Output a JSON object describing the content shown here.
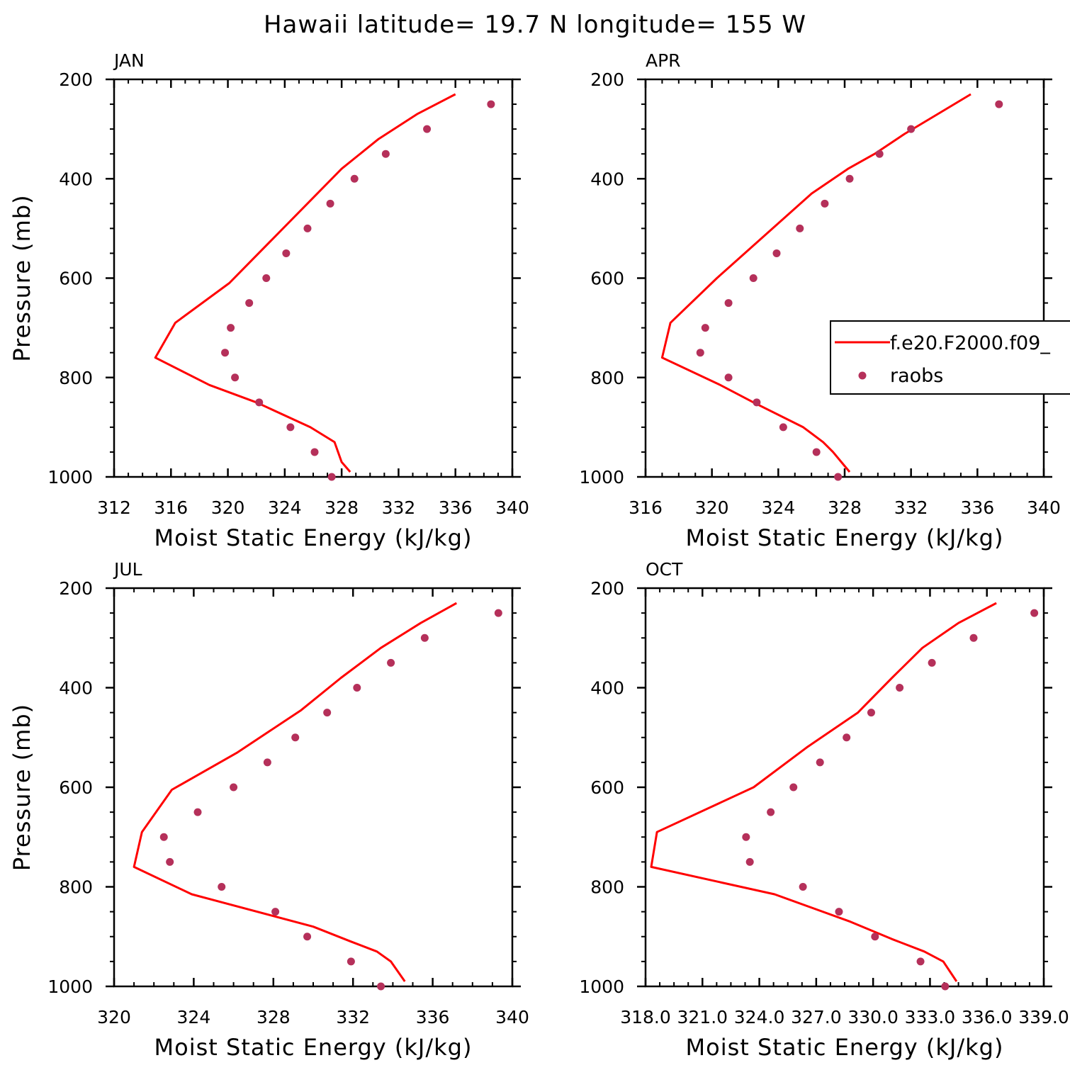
{
  "figure": {
    "title": "Hawaii  latitude= 19.7 N longitude= 155 W"
  },
  "colors": {
    "model_line": "#ff0000",
    "raobs_marker": "#b5305a",
    "axes": "#000000"
  },
  "legend": {
    "position": "right-of-APR-panel",
    "entries": [
      {
        "label": "f.e20.F2000.f09_",
        "style": "line"
      },
      {
        "label": "raobs",
        "style": "marker"
      }
    ]
  },
  "chart_data": [
    {
      "type": "line",
      "panel_label": "JAN",
      "xlabel": "Moist Static Energy (kJ/kg)",
      "ylabel": "Pressure (mb)",
      "xlim": [
        312,
        340
      ],
      "ylim": [
        1000,
        200
      ],
      "x_ticks": [
        312,
        316,
        320,
        324,
        328,
        332,
        336,
        340
      ],
      "x_tick_labels": [
        "312",
        "316",
        "320",
        "324",
        "328",
        "332",
        "336",
        "340"
      ],
      "y_ticks": [
        200,
        400,
        600,
        800,
        1000
      ],
      "y_tick_labels": [
        "200",
        "400",
        "600",
        "800",
        "1000"
      ],
      "series": [
        {
          "name": "f.e20.F2000.f09_",
          "style": "line",
          "x": [
            336.0,
            333.3,
            330.6,
            328.0,
            320.1,
            316.3,
            314.9,
            318.7,
            322.0,
            325.8,
            327.5,
            328.0,
            328.6
          ],
          "y": [
            230,
            270,
            320,
            380,
            610,
            690,
            760,
            815,
            850,
            900,
            930,
            970,
            990
          ]
        },
        {
          "name": "raobs",
          "style": "marker",
          "x": [
            338.5,
            334.0,
            331.1,
            328.9,
            327.2,
            325.6,
            324.1,
            322.7,
            321.5,
            320.2,
            319.8,
            320.5,
            322.2,
            324.4,
            326.1,
            327.3
          ],
          "y": [
            250,
            300,
            350,
            400,
            450,
            500,
            550,
            600,
            650,
            700,
            750,
            800,
            850,
            900,
            950,
            1000
          ]
        }
      ]
    },
    {
      "type": "line",
      "panel_label": "APR",
      "xlabel": "Moist Static Energy (kJ/kg)",
      "ylabel": "",
      "xlim": [
        316,
        340
      ],
      "ylim": [
        1000,
        200
      ],
      "x_ticks": [
        316,
        320,
        324,
        328,
        332,
        336,
        340
      ],
      "x_tick_labels": [
        "316",
        "320",
        "324",
        "328",
        "332",
        "336",
        "340"
      ],
      "y_ticks": [
        200,
        400,
        600,
        800,
        1000
      ],
      "y_tick_labels": [
        "200",
        "400",
        "600",
        "800",
        "1000"
      ],
      "series": [
        {
          "name": "f.e20.F2000.f09_",
          "style": "line",
          "x": [
            335.6,
            333.6,
            331.6,
            329.8,
            328.2,
            326.0,
            320.3,
            317.5,
            317.0,
            320.5,
            322.5,
            325.5,
            326.7,
            327.3,
            327.8,
            328.3
          ],
          "y": [
            230,
            270,
            310,
            350,
            380,
            430,
            600,
            690,
            760,
            815,
            850,
            900,
            930,
            950,
            970,
            990
          ]
        },
        {
          "name": "raobs",
          "style": "marker",
          "x": [
            337.3,
            332.0,
            330.1,
            328.3,
            326.8,
            325.3,
            323.9,
            322.5,
            321.0,
            319.6,
            319.3,
            321.0,
            322.7,
            324.3,
            326.3,
            327.6
          ],
          "y": [
            250,
            300,
            350,
            400,
            450,
            500,
            550,
            600,
            650,
            700,
            750,
            800,
            850,
            900,
            950,
            1000
          ]
        }
      ]
    },
    {
      "type": "line",
      "panel_label": "JUL",
      "xlabel": "Moist Static Energy (kJ/kg)",
      "ylabel": "Pressure (mb)",
      "xlim": [
        320,
        340
      ],
      "ylim": [
        1000,
        200
      ],
      "x_ticks": [
        320,
        324,
        328,
        332,
        336,
        340
      ],
      "x_tick_labels": [
        "320",
        "324",
        "328",
        "332",
        "336",
        "340"
      ],
      "y_ticks": [
        200,
        400,
        600,
        800,
        1000
      ],
      "y_tick_labels": [
        "200",
        "400",
        "600",
        "800",
        "1000"
      ],
      "series": [
        {
          "name": "f.e20.F2000.f09_",
          "style": "line",
          "x": [
            337.2,
            335.4,
            333.4,
            331.4,
            329.4,
            326.2,
            322.9,
            321.4,
            321.0,
            323.9,
            330.0,
            331.9,
            333.2,
            333.9,
            334.6
          ],
          "y": [
            230,
            270,
            320,
            380,
            445,
            530,
            605,
            690,
            760,
            815,
            880,
            910,
            930,
            950,
            990
          ]
        },
        {
          "name": "raobs",
          "style": "marker",
          "x": [
            339.3,
            335.6,
            333.9,
            332.2,
            330.7,
            329.1,
            327.7,
            326.0,
            324.2,
            322.5,
            322.8,
            325.4,
            328.1,
            329.7,
            331.9,
            333.4
          ],
          "y": [
            250,
            300,
            350,
            400,
            450,
            500,
            550,
            600,
            650,
            700,
            750,
            800,
            850,
            900,
            950,
            1000
          ]
        }
      ]
    },
    {
      "type": "line",
      "panel_label": "OCT",
      "xlabel": "Moist Static Energy (kJ/kg)",
      "ylabel": "",
      "xlim": [
        318.0,
        339.0
      ],
      "ylim": [
        1000,
        200
      ],
      "x_ticks": [
        318.0,
        321.0,
        324.0,
        327.0,
        330.0,
        333.0,
        336.0,
        339.0
      ],
      "x_tick_labels": [
        "318.0",
        "321.0",
        "324.0",
        "327.0",
        "330.0",
        "333.0",
        "336.0",
        "339.0"
      ],
      "y_ticks": [
        200,
        400,
        600,
        800,
        1000
      ],
      "y_tick_labels": [
        "200",
        "400",
        "600",
        "800",
        "1000"
      ],
      "series": [
        {
          "name": "f.e20.F2000.f09_",
          "style": "line",
          "x": [
            336.5,
            334.5,
            332.6,
            331.0,
            329.2,
            326.5,
            323.7,
            318.6,
            318.3,
            324.8,
            328.8,
            331.0,
            332.7,
            333.7,
            334.4
          ],
          "y": [
            230,
            270,
            320,
            380,
            450,
            520,
            600,
            690,
            760,
            815,
            870,
            905,
            930,
            950,
            990
          ]
        },
        {
          "name": "raobs",
          "style": "marker",
          "x": [
            338.5,
            335.3,
            333.1,
            331.4,
            329.9,
            328.6,
            327.2,
            325.8,
            324.6,
            323.3,
            323.5,
            326.3,
            328.2,
            330.1,
            332.5,
            333.8
          ],
          "y": [
            250,
            300,
            350,
            400,
            450,
            500,
            550,
            600,
            650,
            700,
            750,
            800,
            850,
            900,
            950,
            1000
          ]
        }
      ]
    }
  ]
}
